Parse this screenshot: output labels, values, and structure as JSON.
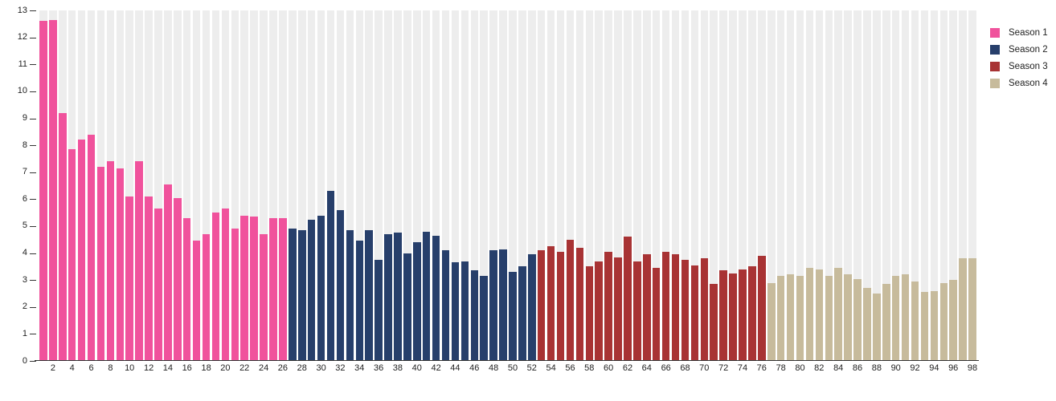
{
  "legend": {
    "items": [
      {
        "label": "Season 1",
        "color": "#f0529c"
      },
      {
        "label": "Season 2",
        "color": "#273f6b"
      },
      {
        "label": "Season 3",
        "color": "#a83334"
      },
      {
        "label": "Season 4",
        "color": "#c7bb9c"
      }
    ]
  },
  "colors": {
    "column_background": "#ededed",
    "axis_line": "#333333"
  },
  "chart_data": {
    "type": "bar",
    "title": "",
    "xlabel": "",
    "ylabel": "",
    "ylim": [
      0,
      13
    ],
    "x_range": [
      1,
      98
    ],
    "grid": "vertical-striped-columns",
    "legend_position": "top-right",
    "y_ticks": [
      0,
      1,
      2,
      3,
      4,
      5,
      6,
      7,
      8,
      9,
      10,
      11,
      12,
      13
    ],
    "x_tick_labels": [
      2,
      4,
      6,
      8,
      10,
      12,
      14,
      16,
      18,
      20,
      22,
      24,
      26,
      28,
      30,
      32,
      34,
      36,
      38,
      40,
      42,
      44,
      46,
      48,
      50,
      52,
      54,
      56,
      58,
      60,
      62,
      64,
      66,
      68,
      70,
      72,
      74,
      76,
      78,
      80,
      82,
      84,
      86,
      88,
      90,
      92,
      94,
      96,
      98
    ],
    "series": [
      {
        "name": "Season 1",
        "color": "#f0529c",
        "episodes_start": 1,
        "values": [
          12.6,
          12.65,
          9.2,
          7.85,
          8.2,
          8.4,
          7.2,
          7.4,
          7.15,
          6.1,
          7.4,
          6.1,
          5.65,
          6.55,
          6.05,
          5.3,
          4.45,
          4.7,
          5.5,
          5.65,
          4.9,
          5.4,
          5.35,
          4.7,
          5.3,
          5.3
        ]
      },
      {
        "name": "Season 2",
        "color": "#273f6b",
        "episodes_start": 27,
        "values": [
          4.9,
          4.85,
          5.25,
          5.4,
          6.3,
          5.6,
          4.85,
          4.45,
          4.85,
          3.75,
          4.7,
          4.75,
          4.0,
          4.4,
          4.8,
          4.65,
          4.1,
          3.65,
          3.7,
          3.35,
          3.15,
          4.1,
          4.15,
          3.3,
          3.5,
          3.95
        ]
      },
      {
        "name": "Season 3",
        "color": "#a83334",
        "episodes_start": 53,
        "values": [
          4.1,
          4.25,
          4.05,
          4.5,
          4.2,
          3.5,
          3.7,
          4.05,
          3.85,
          4.6,
          3.7,
          3.95,
          3.45,
          4.05,
          3.95,
          3.75,
          3.55,
          3.8,
          2.85,
          3.35,
          3.25,
          3.4,
          3.5,
          3.9
        ]
      },
      {
        "name": "Season 4",
        "color": "#c7bb9c",
        "episodes_start": 77,
        "values": [
          2.9,
          3.15,
          3.2,
          3.15,
          3.45,
          3.4,
          3.15,
          3.45,
          3.2,
          3.05,
          2.7,
          2.5,
          2.85,
          3.15,
          3.2,
          2.95,
          2.55,
          2.6,
          2.9,
          3.0,
          3.8,
          3.8
        ]
      }
    ]
  }
}
